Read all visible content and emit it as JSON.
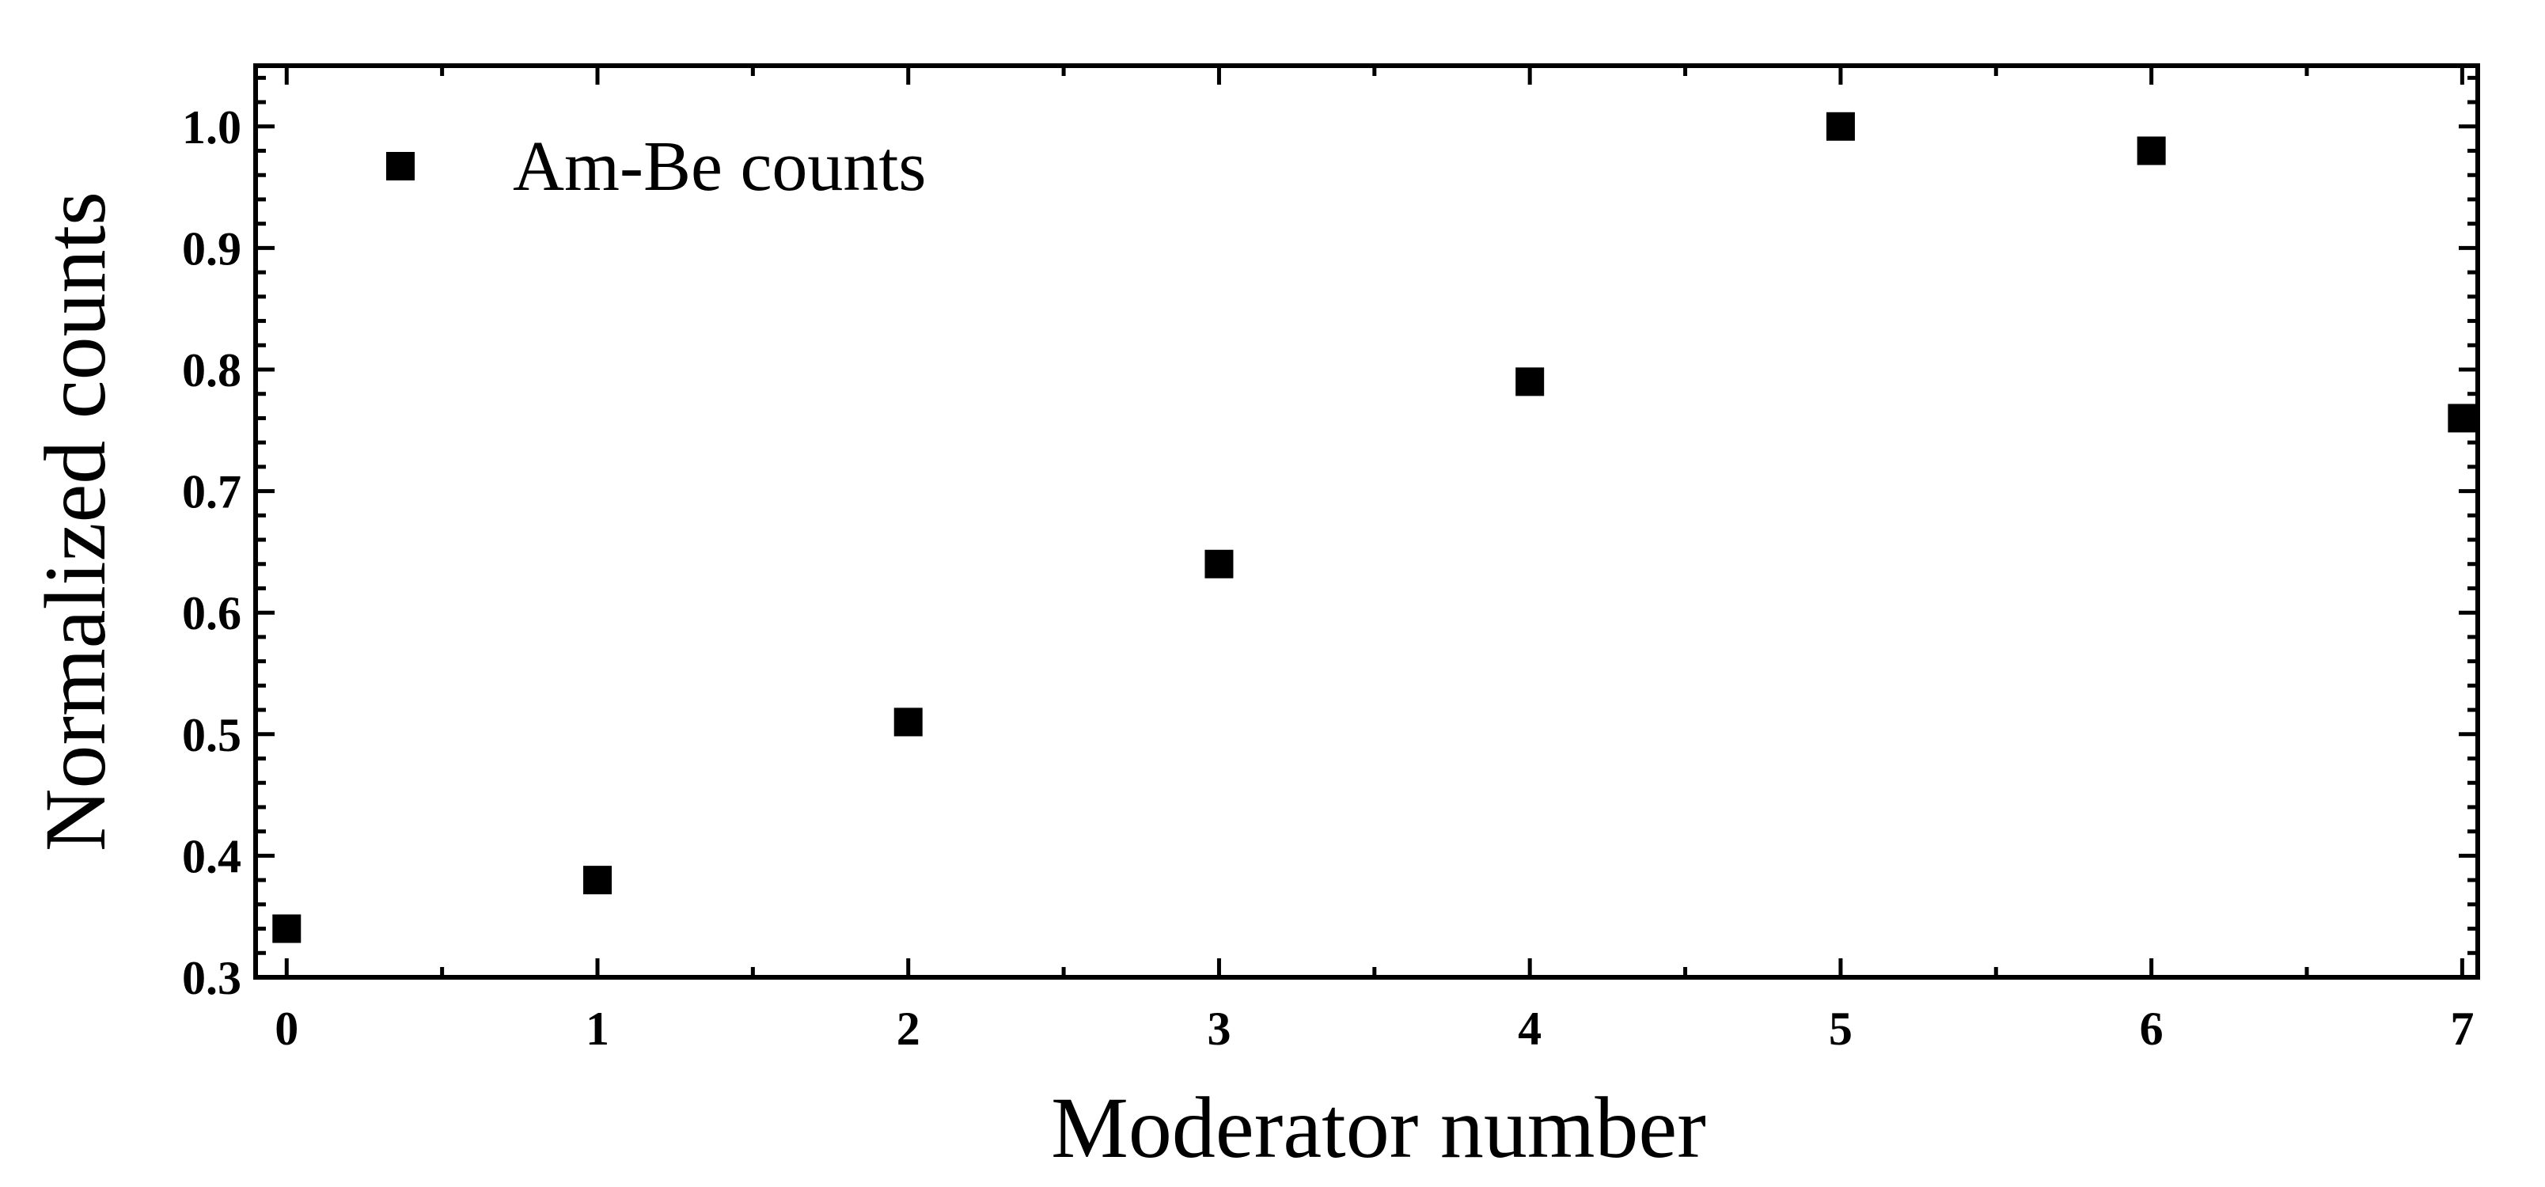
{
  "chart_data": {
    "type": "scatter",
    "xlabel": "Moderator number",
    "ylabel": "Normalized counts",
    "xlim": [
      -0.1,
      7.05
    ],
    "ylim": [
      0.3,
      1.05
    ],
    "x_ticks": [
      0,
      1,
      2,
      3,
      4,
      5,
      6,
      7
    ],
    "x_tick_labels": [
      "0",
      "1",
      "2",
      "3",
      "4",
      "5",
      "6",
      "7"
    ],
    "y_ticks": [
      0.3,
      0.4,
      0.5,
      0.6,
      0.7,
      0.8,
      0.9,
      1.0
    ],
    "y_tick_labels": [
      "0.3",
      "0.4",
      "0.5",
      "0.6",
      "0.7",
      "0.8",
      "0.9",
      "1.0"
    ],
    "grid": false,
    "legend_position": "top-left",
    "series": [
      {
        "name": "Am-Be counts",
        "marker": "square",
        "color": "#000000",
        "x": [
          0,
          1,
          2,
          3,
          4,
          5,
          6,
          7
        ],
        "y": [
          0.34,
          0.38,
          0.51,
          0.64,
          0.79,
          1.0,
          0.98,
          0.76
        ]
      }
    ]
  }
}
